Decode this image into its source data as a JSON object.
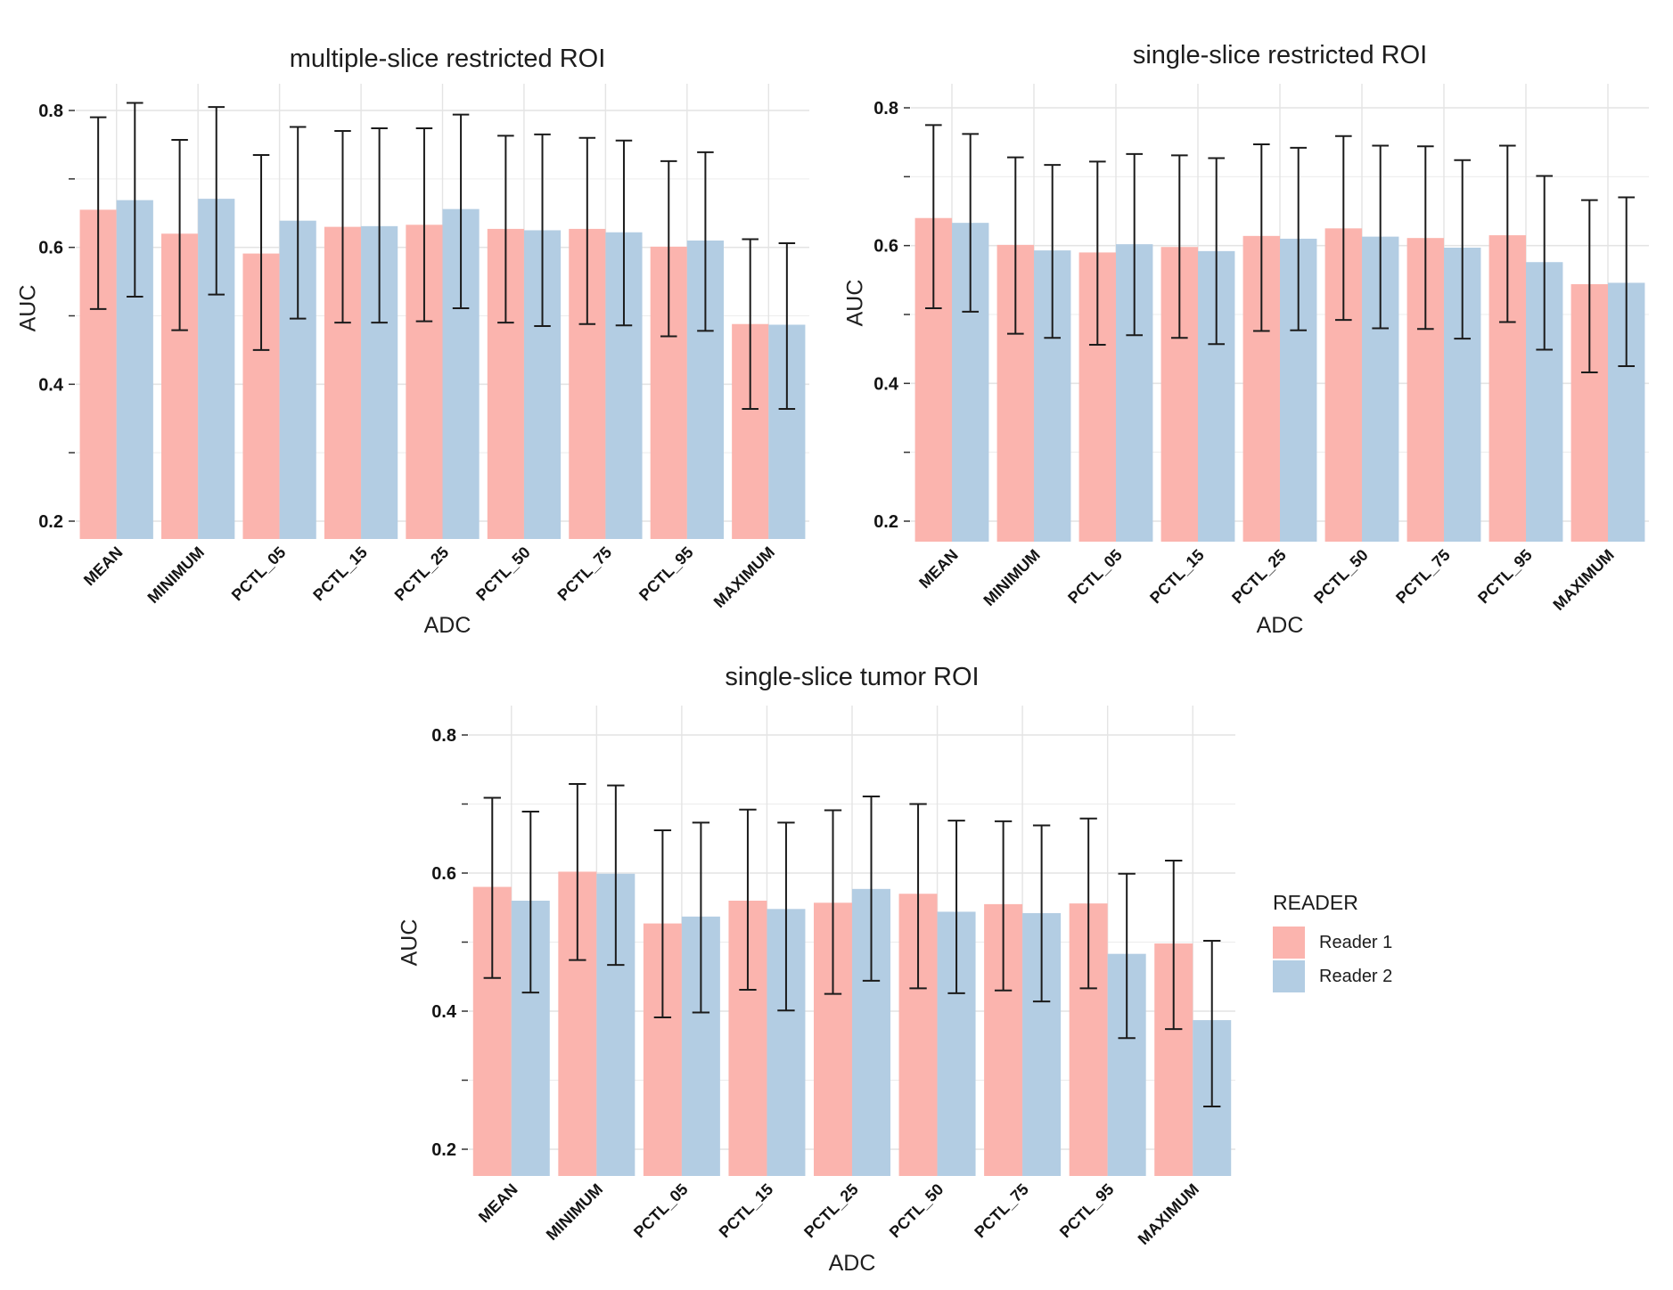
{
  "figure": {
    "background": "#ffffff",
    "grid_major_color": "#e4e4e4",
    "grid_minor_color": "#ececec",
    "errorbar_color": "#1b1b1b",
    "tick_color": "#333333",
    "tick_label_color": "#141414"
  },
  "legend": {
    "title": "READER",
    "items": [
      {
        "label": "Reader 1",
        "color": "#FBB4AE"
      },
      {
        "label": "Reader 2",
        "color": "#B3CDE3"
      }
    ]
  },
  "chart_data": [
    {
      "type": "bar",
      "title": "multiple-slice restricted ROI",
      "xlabel": "ADC",
      "ylabel": "AUC",
      "categories": [
        "MEAN",
        "MINIMUM",
        "PCTL_05",
        "PCTL_15",
        "PCTL_25",
        "PCTL_50",
        "PCTL_75",
        "PCTL_95",
        "MAXIMUM"
      ],
      "yticks": [
        0.2,
        0.4,
        0.6,
        0.8
      ],
      "ylim": [
        0.17,
        0.84
      ],
      "grid": true,
      "legend_position": "none",
      "series": [
        {
          "name": "Reader 1",
          "color": "#FBB4AE",
          "values": [
            0.655,
            0.62,
            0.591,
            0.63,
            0.633,
            0.627,
            0.627,
            0.601,
            0.488
          ],
          "err_low": [
            0.51,
            0.479,
            0.45,
            0.49,
            0.492,
            0.49,
            0.488,
            0.47,
            0.364
          ],
          "err_high": [
            0.79,
            0.757,
            0.735,
            0.77,
            0.774,
            0.763,
            0.76,
            0.726,
            0.612
          ]
        },
        {
          "name": "Reader 2",
          "color": "#B3CDE3",
          "values": [
            0.669,
            0.671,
            0.639,
            0.631,
            0.656,
            0.625,
            0.622,
            0.61,
            0.487
          ],
          "err_low": [
            0.528,
            0.531,
            0.496,
            0.49,
            0.511,
            0.485,
            0.486,
            0.478,
            0.364
          ],
          "err_high": [
            0.811,
            0.805,
            0.776,
            0.774,
            0.794,
            0.765,
            0.756,
            0.739,
            0.606
          ]
        }
      ]
    },
    {
      "type": "bar",
      "title": "single-slice restricted ROI",
      "xlabel": "ADC",
      "ylabel": "AUC",
      "categories": [
        "MEAN",
        "MINIMUM",
        "PCTL_05",
        "PCTL_15",
        "PCTL_25",
        "PCTL_50",
        "PCTL_75",
        "PCTL_95",
        "MAXIMUM"
      ],
      "yticks": [
        0.2,
        0.4,
        0.6,
        0.8
      ],
      "ylim": [
        0.17,
        0.84
      ],
      "grid": true,
      "legend_position": "none",
      "series": [
        {
          "name": "Reader 1",
          "color": "#FBB4AE",
          "values": [
            0.64,
            0.601,
            0.59,
            0.598,
            0.614,
            0.625,
            0.611,
            0.615,
            0.544
          ],
          "err_low": [
            0.509,
            0.472,
            0.456,
            0.466,
            0.476,
            0.492,
            0.479,
            0.489,
            0.416
          ],
          "err_high": [
            0.775,
            0.728,
            0.722,
            0.731,
            0.747,
            0.759,
            0.744,
            0.745,
            0.666
          ]
        },
        {
          "name": "Reader 2",
          "color": "#B3CDE3",
          "values": [
            0.633,
            0.593,
            0.602,
            0.592,
            0.61,
            0.613,
            0.597,
            0.576,
            0.546
          ],
          "err_low": [
            0.504,
            0.466,
            0.47,
            0.457,
            0.477,
            0.48,
            0.465,
            0.449,
            0.425
          ],
          "err_high": [
            0.762,
            0.717,
            0.733,
            0.727,
            0.742,
            0.745,
            0.724,
            0.701,
            0.67
          ]
        }
      ]
    },
    {
      "type": "bar",
      "title": "single-slice tumor ROI",
      "xlabel": "ADC",
      "ylabel": "AUC",
      "categories": [
        "MEAN",
        "MINIMUM",
        "PCTL_05",
        "PCTL_15",
        "PCTL_25",
        "PCTL_50",
        "PCTL_75",
        "PCTL_95",
        "MAXIMUM"
      ],
      "yticks": [
        0.2,
        0.4,
        0.6,
        0.8
      ],
      "ylim": [
        0.16,
        0.84
      ],
      "grid": true,
      "legend_position": "right",
      "series": [
        {
          "name": "Reader 1",
          "color": "#FBB4AE",
          "values": [
            0.58,
            0.602,
            0.527,
            0.56,
            0.557,
            0.57,
            0.555,
            0.556,
            0.498
          ],
          "err_low": [
            0.448,
            0.474,
            0.391,
            0.431,
            0.425,
            0.433,
            0.43,
            0.433,
            0.374
          ],
          "err_high": [
            0.709,
            0.729,
            0.662,
            0.692,
            0.691,
            0.7,
            0.675,
            0.679,
            0.618
          ]
        },
        {
          "name": "Reader 2",
          "color": "#B3CDE3",
          "values": [
            0.56,
            0.599,
            0.537,
            0.548,
            0.577,
            0.544,
            0.542,
            0.483,
            0.387
          ],
          "err_low": [
            0.427,
            0.467,
            0.398,
            0.401,
            0.444,
            0.426,
            0.414,
            0.361,
            0.262
          ],
          "err_high": [
            0.689,
            0.727,
            0.673,
            0.673,
            0.711,
            0.676,
            0.669,
            0.599,
            0.502
          ]
        }
      ]
    }
  ]
}
